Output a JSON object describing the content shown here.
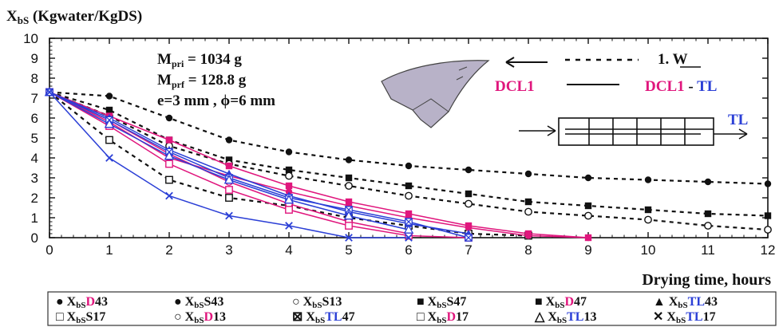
{
  "chart_data": {
    "type": "line",
    "ylabel_main": "X",
    "ylabel_sub": "bS",
    "ylabel_rest": " (Kgwater/KgDS)",
    "xlabel": "Drying time, hours",
    "xlim": [
      0,
      12
    ],
    "ylim": [
      0,
      10
    ],
    "x_ticks": [
      "0",
      "1",
      "2",
      "3",
      "4",
      "5",
      "6",
      "7",
      "8",
      "9",
      "10",
      "11",
      "12"
    ],
    "y_ticks": [
      "0",
      "1",
      "2",
      "3",
      "4",
      "5",
      "6",
      "7",
      "8",
      "9",
      "10"
    ],
    "annotations": {
      "mpri_main": "M",
      "mpri_sub": "pri",
      "mpri_val": " = 1034 g",
      "mprf_main": "M",
      "mprf_sub": "prf",
      "mprf_val": " = 128.8 g",
      "dims": "e=3 mm , ϕ=6 mm",
      "w_label": "1. W",
      "dcl1": "DCL1",
      "dcl1_tl_a": "DCL1",
      "dcl1_tl_dash": " - ",
      "dcl1_tl_b": "TL",
      "tl": "TL"
    },
    "colors": {
      "black": "#111111",
      "magenta": "#e0167d",
      "blue": "#2b3fd6",
      "navy": "#1f2a6e"
    },
    "legend": [
      {
        "sym": "●",
        "main": "X",
        "sub": "bS",
        "part": "D",
        "num": "43",
        "color": "magenta"
      },
      {
        "sym": "●",
        "main": "X",
        "sub": "bS",
        "part": "S",
        "num": "43",
        "color": "black"
      },
      {
        "sym": "○",
        "main": "X",
        "sub": "bS",
        "part": "S",
        "num": "13",
        "color": "black"
      },
      {
        "sym": "■",
        "main": "X",
        "sub": "bS",
        "part": "S",
        "num": "47",
        "color": "black"
      },
      {
        "sym": "■",
        "main": "X",
        "sub": "bS",
        "part": "D",
        "num": "47",
        "color": "magenta"
      },
      {
        "sym": "▲",
        "main": "X",
        "sub": "bS",
        "part": "TL",
        "num": "43",
        "color": "blue"
      },
      {
        "sym": "□",
        "main": "X",
        "sub": "bS",
        "part": "S",
        "num": "17",
        "color": "black"
      },
      {
        "sym": "○",
        "main": "X",
        "sub": "bS",
        "part": "D",
        "num": "13",
        "color": "magenta"
      },
      {
        "sym": "⊠",
        "main": "X",
        "sub": "bS",
        "part": "TL",
        "num": "47",
        "color": "blue"
      },
      {
        "sym": "□",
        "main": "X",
        "sub": "bS",
        "part": "D",
        "num": "17",
        "color": "magenta"
      },
      {
        "sym": "△",
        "main": "X",
        "sub": "bS",
        "part": "TL",
        "num": "13",
        "color": "blue"
      },
      {
        "sym": "✕",
        "main": "X",
        "sub": "bS",
        "part": "TL",
        "num": "17",
        "color": "blue"
      }
    ],
    "series": [
      {
        "marker": "filled-circle",
        "line": "dashed",
        "color": "#111111",
        "x": [
          0,
          1,
          2,
          3,
          4,
          5,
          6,
          7,
          8,
          9,
          10,
          11,
          12
        ],
        "y": [
          7.3,
          7.1,
          6.0,
          4.9,
          4.3,
          3.9,
          3.6,
          3.4,
          3.2,
          3.0,
          2.9,
          2.8,
          2.7
        ]
      },
      {
        "marker": "filled-square",
        "line": "dashed",
        "color": "#111111",
        "x": [
          0,
          1,
          2,
          3,
          4,
          5,
          6,
          7,
          8,
          9,
          10,
          11,
          12
        ],
        "y": [
          7.3,
          6.4,
          4.9,
          3.9,
          3.4,
          3.0,
          2.6,
          2.2,
          1.8,
          1.6,
          1.4,
          1.2,
          1.1
        ]
      },
      {
        "marker": "open-circle",
        "line": "dashed",
        "color": "#111111",
        "x": [
          0,
          1,
          2,
          3,
          4,
          5,
          6,
          7,
          8,
          9,
          10,
          11,
          12
        ],
        "y": [
          7.3,
          6.1,
          4.6,
          3.7,
          3.1,
          2.6,
          2.1,
          1.7,
          1.3,
          1.1,
          0.9,
          0.6,
          0.4
        ]
      },
      {
        "marker": "open-square",
        "line": "dashed",
        "color": "#111111",
        "x": [
          0,
          1,
          2,
          3,
          4,
          5,
          6,
          7,
          8
        ],
        "y": [
          7.3,
          4.9,
          2.9,
          2.0,
          1.6,
          1.0,
          0.6,
          0.2,
          0.1
        ]
      },
      {
        "marker": "filled-circle",
        "line": "solid",
        "color": "#e0167d",
        "x": [
          0,
          1,
          2,
          3,
          4,
          5,
          6,
          7,
          8,
          9
        ],
        "y": [
          7.3,
          5.8,
          4.0,
          3.1,
          2.3,
          1.6,
          1.0,
          0.5,
          0.1,
          0.0
        ]
      },
      {
        "marker": "filled-square",
        "line": "solid",
        "color": "#e0167d",
        "x": [
          0,
          1,
          2,
          3,
          4,
          5,
          6,
          7,
          8,
          9
        ],
        "y": [
          7.3,
          6.1,
          4.9,
          3.6,
          2.6,
          1.8,
          1.2,
          0.6,
          0.2,
          0.0
        ]
      },
      {
        "marker": "open-circle",
        "line": "solid",
        "color": "#e0167d",
        "x": [
          0,
          1,
          2,
          3,
          4,
          5,
          6
        ],
        "y": [
          7.3,
          5.9,
          4.2,
          2.8,
          1.7,
          0.8,
          0.2
        ]
      },
      {
        "marker": "open-square",
        "line": "solid",
        "color": "#e0167d",
        "x": [
          0,
          1,
          2,
          3,
          4,
          5,
          6,
          7
        ],
        "y": [
          7.3,
          5.6,
          3.7,
          2.4,
          1.4,
          0.6,
          0.1,
          0.0
        ]
      },
      {
        "marker": "filled-triangle",
        "line": "solid",
        "color": "#2b3fd6",
        "x": [
          0,
          1,
          2,
          3,
          4,
          5,
          6,
          7
        ],
        "y": [
          7.3,
          6.0,
          4.4,
          3.2,
          2.1,
          1.3,
          0.7,
          0.2
        ]
      },
      {
        "marker": "boxed-x",
        "line": "solid",
        "color": "#2b3fd6",
        "x": [
          0,
          1,
          2,
          3,
          4,
          5,
          6,
          7
        ],
        "y": [
          7.3,
          5.9,
          4.3,
          3.0,
          2.0,
          1.4,
          0.8,
          0.0
        ]
      },
      {
        "marker": "open-triangle",
        "line": "solid",
        "color": "#2b3fd6",
        "x": [
          0,
          1,
          2,
          3,
          4,
          5,
          6
        ],
        "y": [
          7.3,
          5.7,
          4.1,
          2.9,
          1.9,
          1.1,
          0.4
        ]
      },
      {
        "marker": "x",
        "line": "solid",
        "color": "#2b3fd6",
        "x": [
          0,
          1,
          2,
          3,
          4,
          5,
          6
        ],
        "y": [
          7.3,
          4.0,
          2.1,
          1.1,
          0.6,
          0.0,
          0.0
        ]
      }
    ]
  }
}
